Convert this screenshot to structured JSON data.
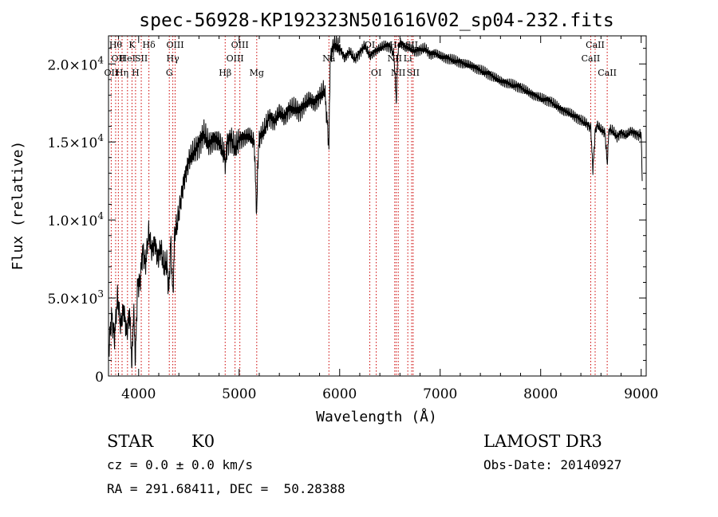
{
  "chart_data": {
    "type": "line",
    "title": "spec-56928-KP192323N501616V02_sp04-232.fits",
    "xlabel": "Wavelength (Å)",
    "ylabel": "Flux (relative)",
    "xlim": [
      3700,
      9050
    ],
    "ylim": [
      0,
      21800
    ],
    "x_ticks": [
      {
        "value": 4000,
        "label": "4000"
      },
      {
        "value": 5000,
        "label": "5000"
      },
      {
        "value": 6000,
        "label": "6000"
      },
      {
        "value": 7000,
        "label": "7000"
      },
      {
        "value": 8000,
        "label": "8000"
      },
      {
        "value": 9000,
        "label": "9000"
      }
    ],
    "y_ticks": [
      {
        "value": 0,
        "mantissa": "0",
        "exp": ""
      },
      {
        "value": 5000,
        "mantissa": "5.0×10",
        "exp": "3"
      },
      {
        "value": 10000,
        "mantissa": "1.0×10",
        "exp": "4"
      },
      {
        "value": 15000,
        "mantissa": "1.5×10",
        "exp": "4"
      },
      {
        "value": 20000,
        "mantissa": "2.0×10",
        "exp": "4"
      }
    ],
    "series": [
      {
        "name": "flux",
        "x": [
          3700,
          3730,
          3760,
          3790,
          3820,
          3850,
          3880,
          3910,
          3933,
          3950,
          3968,
          3990,
          4010,
          4040,
          4070,
          4100,
          4130,
          4160,
          4190,
          4220,
          4250,
          4280,
          4300,
          4320,
          4340,
          4360,
          4380,
          4400,
          4450,
          4500,
          4550,
          4600,
          4650,
          4700,
          4750,
          4800,
          4850,
          4861,
          4880,
          4920,
          4960,
          5000,
          5050,
          5100,
          5150,
          5175,
          5185,
          5200,
          5250,
          5300,
          5350,
          5400,
          5450,
          5500,
          5550,
          5600,
          5650,
          5700,
          5750,
          5800,
          5850,
          5893,
          5905,
          5920,
          5950,
          6000,
          6050,
          6100,
          6150,
          6200,
          6250,
          6300,
          6350,
          6400,
          6450,
          6500,
          6540,
          6563,
          6580,
          6600,
          6650,
          6700,
          6750,
          6800,
          6850,
          6900,
          6950,
          7000,
          7100,
          7200,
          7300,
          7400,
          7500,
          7600,
          7700,
          7800,
          7900,
          8000,
          8100,
          8200,
          8300,
          8400,
          8450,
          8498,
          8520,
          8542,
          8560,
          8600,
          8640,
          8662,
          8680,
          8720,
          8760,
          8800,
          8850,
          8900,
          8950,
          8980,
          9000,
          9010
        ],
        "y": [
          1500,
          3800,
          2500,
          5100,
          3200,
          4300,
          2800,
          4000,
          900,
          4200,
          1100,
          6000,
          5800,
          8000,
          7200,
          9200,
          8000,
          8600,
          7500,
          8200,
          7000,
          7300,
          5400,
          8800,
          5100,
          9300,
          9600,
          10400,
          12500,
          13800,
          14400,
          14800,
          15600,
          14800,
          15200,
          15000,
          14200,
          13400,
          14900,
          15200,
          14600,
          15100,
          15300,
          15400,
          15000,
          10200,
          13700,
          15200,
          15800,
          16600,
          16300,
          16900,
          16600,
          17100,
          17200,
          16900,
          17400,
          17700,
          17500,
          17900,
          18400,
          14800,
          20000,
          20800,
          21300,
          21000,
          20400,
          20800,
          20300,
          20700,
          21200,
          20500,
          20800,
          21000,
          21200,
          21100,
          20600,
          17600,
          20800,
          21400,
          21100,
          21000,
          20800,
          20900,
          21000,
          20600,
          20700,
          20500,
          20300,
          20100,
          19900,
          19600,
          19300,
          18900,
          18700,
          18500,
          18100,
          17800,
          17600,
          17100,
          16800,
          16400,
          16200,
          15900,
          13200,
          15600,
          16100,
          15800,
          15600,
          13600,
          15800,
          15700,
          15300,
          15600,
          15400,
          15700,
          15500,
          15400,
          15600,
          12500
        ]
      }
    ],
    "lines": [
      {
        "wave": 3727,
        "label": "OII",
        "row": 3
      },
      {
        "wave": 3771,
        "label": "Hθ",
        "row": 1
      },
      {
        "wave": 3798,
        "label": "OII",
        "row": 2
      },
      {
        "wave": 3835,
        "label": "Hη",
        "row": 3
      },
      {
        "wave": 3889,
        "label": "HeI",
        "row": 2
      },
      {
        "wave": 3934,
        "label": "K",
        "row": 1
      },
      {
        "wave": 3969,
        "label": "H",
        "row": 3
      },
      {
        "wave": 4026,
        "label": "SII",
        "row": 2
      },
      {
        "wave": 4102,
        "label": "Hδ",
        "row": 1
      },
      {
        "wave": 4305,
        "label": "G",
        "row": 3
      },
      {
        "wave": 4340,
        "label": "Hγ",
        "row": 2
      },
      {
        "wave": 4363,
        "label": "OIII",
        "row": 1
      },
      {
        "wave": 4861,
        "label": "Hβ",
        "row": 3
      },
      {
        "wave": 4959,
        "label": "OIII",
        "row": 2
      },
      {
        "wave": 5007,
        "label": "OIII",
        "row": 1
      },
      {
        "wave": 5175,
        "label": "Mg",
        "row": 3
      },
      {
        "wave": 5893,
        "label": "Na",
        "row": 2
      },
      {
        "wave": 6300,
        "label": "OI",
        "row": 1
      },
      {
        "wave": 6364,
        "label": "OI",
        "row": 3
      },
      {
        "wave": 6548,
        "label": "NII",
        "row": 2
      },
      {
        "wave": 6563,
        "label": "Hα",
        "row": 1
      },
      {
        "wave": 6583,
        "label": "NII",
        "row": 3
      },
      {
        "wave": 6716,
        "label": "SII",
        "row": 1
      },
      {
        "wave": 6731,
        "label": "SII",
        "row": 3
      },
      {
        "wave": 6678,
        "label": "Li",
        "row": 2
      },
      {
        "wave": 8498,
        "label": "CaII",
        "row": 2
      },
      {
        "wave": 8542,
        "label": "CaII",
        "row": 1
      },
      {
        "wave": 8662,
        "label": "CaII",
        "row": 3
      }
    ]
  },
  "info": {
    "class": "STAR",
    "subclass": "K0",
    "survey": "LAMOST DR3",
    "redshift": "cz = 0.0 ± 0.0 km/s",
    "obs_date": "Obs-Date: 20140927",
    "coords": "RA = 291.68411, DEC =  50.28388"
  },
  "colors": {
    "line": "#000000",
    "marker": "#cc0000",
    "axis": "#000000",
    "background": "#ffffff"
  }
}
